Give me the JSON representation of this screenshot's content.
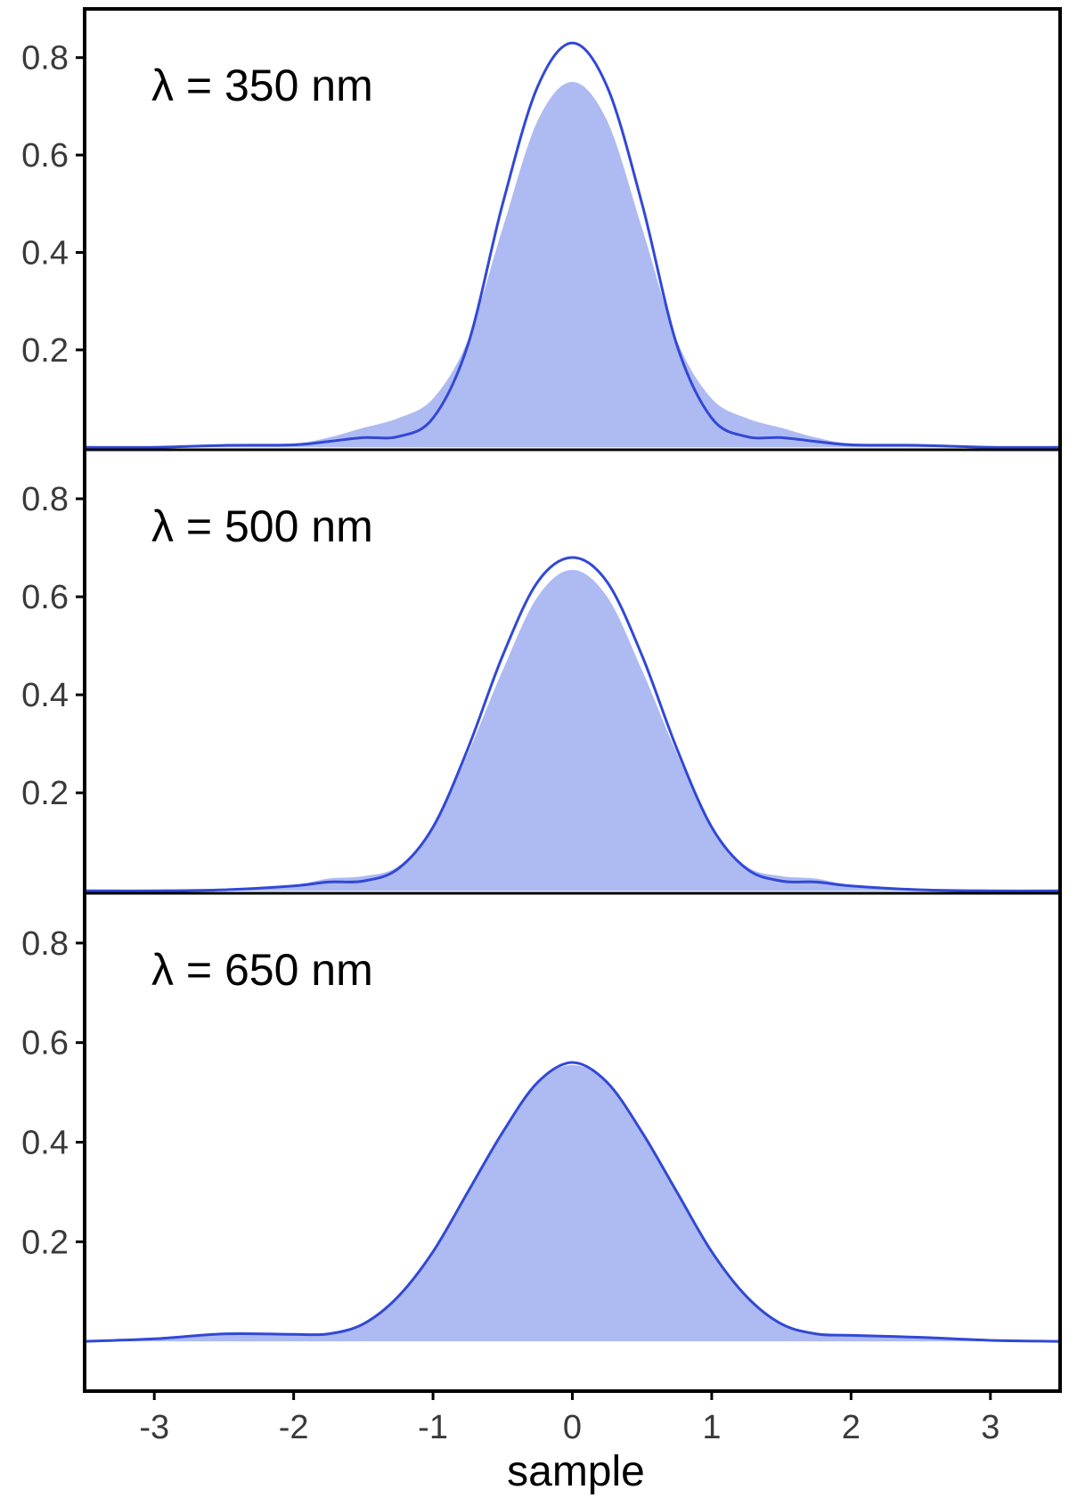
{
  "chart_data": {
    "type": "area",
    "xlabel": "sample",
    "xlim": [
      -3.5,
      3.5
    ],
    "x_ticks": [
      -3,
      -2,
      -1,
      0,
      1,
      2,
      3
    ],
    "x_tick_labels": [
      "-3",
      "-2",
      "-1",
      "0",
      "1",
      "2",
      "3"
    ],
    "y_ticks": [
      0.2,
      0.4,
      0.6,
      0.8
    ],
    "y_tick_labels": [
      "0.2",
      "0.4",
      "0.6",
      "0.8"
    ],
    "grid": false,
    "colors": {
      "fill": "#aebaf2",
      "line": "#3148d6",
      "frame": "#000000"
    },
    "panels": [
      {
        "label": "λ = 350 nm",
        "ylim": [
          -0.005,
          0.9
        ],
        "x": [
          -3.5,
          -3.0,
          -2.5,
          -2.0,
          -1.75,
          -1.5,
          -1.25,
          -1.0,
          -0.75,
          -0.5,
          -0.25,
          0.0,
          0.25,
          0.5,
          0.75,
          1.0,
          1.25,
          1.5,
          1.75,
          2.0,
          2.5,
          3.0,
          3.5
        ],
        "filled_values": [
          0.0,
          0.0,
          0.003,
          0.008,
          0.02,
          0.04,
          0.06,
          0.1,
          0.22,
          0.45,
          0.67,
          0.75,
          0.67,
          0.45,
          0.22,
          0.1,
          0.06,
          0.04,
          0.02,
          0.008,
          0.003,
          0.0,
          0.0
        ],
        "line_values": [
          0.0,
          0.0,
          0.004,
          0.005,
          0.012,
          0.02,
          0.022,
          0.06,
          0.21,
          0.5,
          0.74,
          0.83,
          0.74,
          0.5,
          0.21,
          0.06,
          0.022,
          0.02,
          0.012,
          0.005,
          0.004,
          0.0,
          0.0
        ]
      },
      {
        "label": "λ = 500 nm",
        "ylim": [
          -0.005,
          0.9
        ],
        "x": [
          -3.5,
          -3.0,
          -2.5,
          -2.0,
          -1.75,
          -1.5,
          -1.25,
          -1.0,
          -0.75,
          -0.5,
          -0.25,
          0.0,
          0.25,
          0.5,
          0.75,
          1.0,
          1.25,
          1.5,
          1.75,
          2.0,
          2.5,
          3.0,
          3.5
        ],
        "filled_values": [
          0.0,
          0.0,
          0.002,
          0.012,
          0.025,
          0.03,
          0.05,
          0.13,
          0.28,
          0.45,
          0.6,
          0.655,
          0.6,
          0.45,
          0.28,
          0.13,
          0.05,
          0.03,
          0.025,
          0.012,
          0.002,
          0.0,
          0.0
        ],
        "line_values": [
          0.0,
          0.0,
          0.002,
          0.01,
          0.018,
          0.02,
          0.045,
          0.13,
          0.29,
          0.48,
          0.63,
          0.68,
          0.63,
          0.48,
          0.29,
          0.13,
          0.045,
          0.02,
          0.018,
          0.01,
          0.002,
          0.0,
          0.0
        ]
      },
      {
        "label": "λ = 650 nm",
        "ylim": [
          -0.1,
          0.9
        ],
        "x": [
          -3.5,
          -3.0,
          -2.5,
          -2.0,
          -1.75,
          -1.5,
          -1.25,
          -1.0,
          -0.75,
          -0.5,
          -0.25,
          0.0,
          0.25,
          0.5,
          0.75,
          1.0,
          1.25,
          1.5,
          1.75,
          2.0,
          2.5,
          3.0,
          3.5
        ],
        "filled_values": [
          0.0,
          0.005,
          0.015,
          0.014,
          0.015,
          0.035,
          0.09,
          0.18,
          0.3,
          0.42,
          0.52,
          0.555,
          0.52,
          0.42,
          0.3,
          0.18,
          0.09,
          0.035,
          0.015,
          0.012,
          0.008,
          0.002,
          0.0
        ],
        "line_values": [
          0.0,
          0.005,
          0.015,
          0.014,
          0.015,
          0.035,
          0.09,
          0.18,
          0.3,
          0.42,
          0.52,
          0.56,
          0.52,
          0.42,
          0.3,
          0.18,
          0.09,
          0.035,
          0.015,
          0.012,
          0.008,
          0.002,
          0.0
        ]
      }
    ]
  }
}
